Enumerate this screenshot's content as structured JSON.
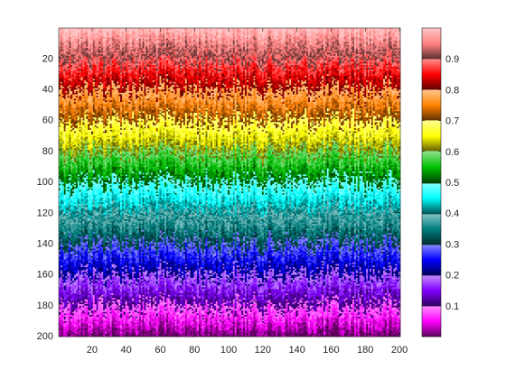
{
  "chart_data": {
    "type": "heatmap",
    "title": "",
    "xlabel": "",
    "ylabel": "",
    "xlim": [
      0.5,
      200.5
    ],
    "ylim": [
      0.5,
      200.5
    ],
    "y_direction": "reversed",
    "x_ticks": [
      20,
      40,
      60,
      80,
      100,
      120,
      140,
      160,
      180,
      200
    ],
    "y_ticks": [
      20,
      40,
      60,
      80,
      100,
      120,
      140,
      160,
      180,
      200
    ],
    "columns": 200,
    "rows": 200,
    "value_pattern": "value decreases with row index from ~1.0 at row 1 to ~0.0 at row 200, with strong column-wise random jitter",
    "colorbar": {
      "range": [
        0,
        1
      ],
      "ticks": [
        0.1,
        0.2,
        0.3,
        0.4,
        0.5,
        0.6,
        0.7,
        0.8,
        0.9
      ],
      "location": "right"
    },
    "colormap": {
      "bands": 10,
      "band_hues": [
        "#ff00ff",
        "#8000ff",
        "#0000ff",
        "#008080",
        "#00ffff",
        "#00c000",
        "#ffff00",
        "#ff8000",
        "#ff0000",
        "#ff8080"
      ],
      "description": "each 0.1 band shades from dark (low end) to light (high end)"
    }
  }
}
